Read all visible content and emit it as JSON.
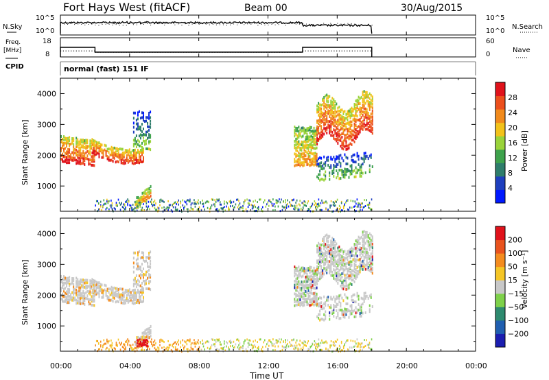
{
  "header": {
    "title": "Fort Hays West (fitACF)",
    "beam": "Beam 00",
    "date": "30/Aug/2015"
  },
  "noise_panel": {
    "left_label": "N.Sky",
    "left_ticks": [
      "10^5",
      "10^0"
    ],
    "right_label": "N.Search",
    "right_ticks": [
      "10^5",
      "10^0"
    ]
  },
  "freq_panel": {
    "left_label_line1": "Freq.",
    "left_label_line2": "[MHz]",
    "left_ticks": [
      "18",
      "8"
    ],
    "right_label": "Nave",
    "right_ticks": [
      "60",
      "0"
    ]
  },
  "cpid": {
    "label": "CPID",
    "mode": "normal (fast) 151 IF"
  },
  "x_axis": {
    "label": "Time UT",
    "ticks": [
      "00:00",
      "04:00",
      "08:00",
      "12:00",
      "16:00",
      "20:00",
      "00:00"
    ]
  },
  "power_panel": {
    "ylabel": "Slant Range [km]",
    "yticks": [
      "1000",
      "2000",
      "3000",
      "4000"
    ],
    "colorbar_label": "Power [dB]",
    "colorbar_ticks": [
      "4",
      "8",
      "12",
      "16",
      "20",
      "24",
      "28"
    ],
    "colors": [
      "#0019ff",
      "#1e3fbe",
      "#2e7d6b",
      "#3ea24c",
      "#9ad33a",
      "#f2c21a",
      "#f18a1c",
      "#ec4f1c",
      "#e0121b"
    ]
  },
  "velocity_panel": {
    "ylabel": "Slant Range [km]",
    "yticks": [
      "1000",
      "2000",
      "3000",
      "4000"
    ],
    "colorbar_label": "Velocity [m s⁻¹]",
    "colorbar_ticks": [
      "200",
      "100",
      "50",
      "15",
      "−15",
      "−50",
      "−100",
      "−200"
    ],
    "colors": [
      "#1b1eb0",
      "#205fb0",
      "#2e8a6f",
      "#7ed14a",
      "#c8c8c8",
      "#f5c626",
      "#f48c1f",
      "#e9531e",
      "#e0121b"
    ],
    "ground_scatter_color": "#c8c8c8"
  },
  "chart_data": {
    "type": "heatmap",
    "xlabel": "Time UT",
    "ylabel": "Slant Range [km]",
    "xlim_hours": [
      0,
      24
    ],
    "ylim_km": [
      180,
      4500
    ],
    "data_end_hour": 18,
    "power_regions": [
      {
        "t_start": 0.0,
        "t_end": 2.0,
        "r_low": 1750,
        "r_high": 2750,
        "level": "high"
      },
      {
        "t_start": 1.8,
        "t_end": 4.8,
        "r_low": 1200,
        "r_high": 2400,
        "level": "high"
      },
      {
        "t_start": 4.2,
        "t_end": 5.2,
        "r_low": 2200,
        "r_high": 3500,
        "level": "low"
      },
      {
        "t_start": 4.3,
        "t_end": 5.2,
        "r_low": 300,
        "r_high": 1100,
        "level": "medium"
      },
      {
        "t_start": 13.5,
        "t_end": 14.8,
        "r_low": 1700,
        "r_high": 3000,
        "level": "medium"
      },
      {
        "t_start": 14.8,
        "t_end": 18.0,
        "r_low": 2300,
        "r_high": 4100,
        "level": "high"
      },
      {
        "t_start": 14.8,
        "t_end": 18.0,
        "r_low": 1200,
        "r_high": 2100,
        "level": "low"
      }
    ],
    "noise_sky_log10": 4,
    "freq_mhz": [
      {
        "t_start": 0,
        "t_end": 2,
        "value": 13.0
      },
      {
        "t_start": 2,
        "t_end": 14,
        "value": 10.5
      },
      {
        "t_start": 14,
        "t_end": 18,
        "value": 13.0
      }
    ],
    "nave": [
      {
        "t_start": 0,
        "t_end": 2,
        "value": 20
      },
      {
        "t_start": 2,
        "t_end": 14,
        "value": 16
      },
      {
        "t_start": 14,
        "t_end": 18,
        "value": 20
      }
    ]
  }
}
